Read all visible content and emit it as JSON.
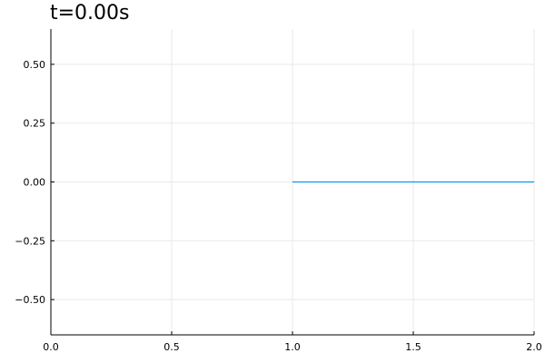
{
  "chart_data": {
    "type": "line",
    "title": "t=0.00s",
    "xlabel": "",
    "ylabel": "",
    "xlim": [
      0.0,
      2.0
    ],
    "ylim": [
      -0.65,
      0.65
    ],
    "grid": true,
    "legend": "none",
    "x_ticks": [
      {
        "value": 0.0,
        "label": "0.0"
      },
      {
        "value": 0.5,
        "label": "0.5"
      },
      {
        "value": 1.0,
        "label": "1.0"
      },
      {
        "value": 1.5,
        "label": "1.5"
      },
      {
        "value": 2.0,
        "label": "2.0"
      }
    ],
    "y_ticks": [
      {
        "value": 0.5,
        "label": "0.50"
      },
      {
        "value": 0.25,
        "label": "0.25"
      },
      {
        "value": 0.0,
        "label": "0.00"
      },
      {
        "value": -0.25,
        "label": "−0.25"
      },
      {
        "value": -0.5,
        "label": "−0.50"
      }
    ],
    "series": [
      {
        "color": "#009af9",
        "x": [
          1.0,
          1.25,
          1.5,
          1.75,
          2.0
        ],
        "y": [
          0.0,
          0.0,
          0.0,
          0.0,
          0.0
        ]
      }
    ]
  }
}
